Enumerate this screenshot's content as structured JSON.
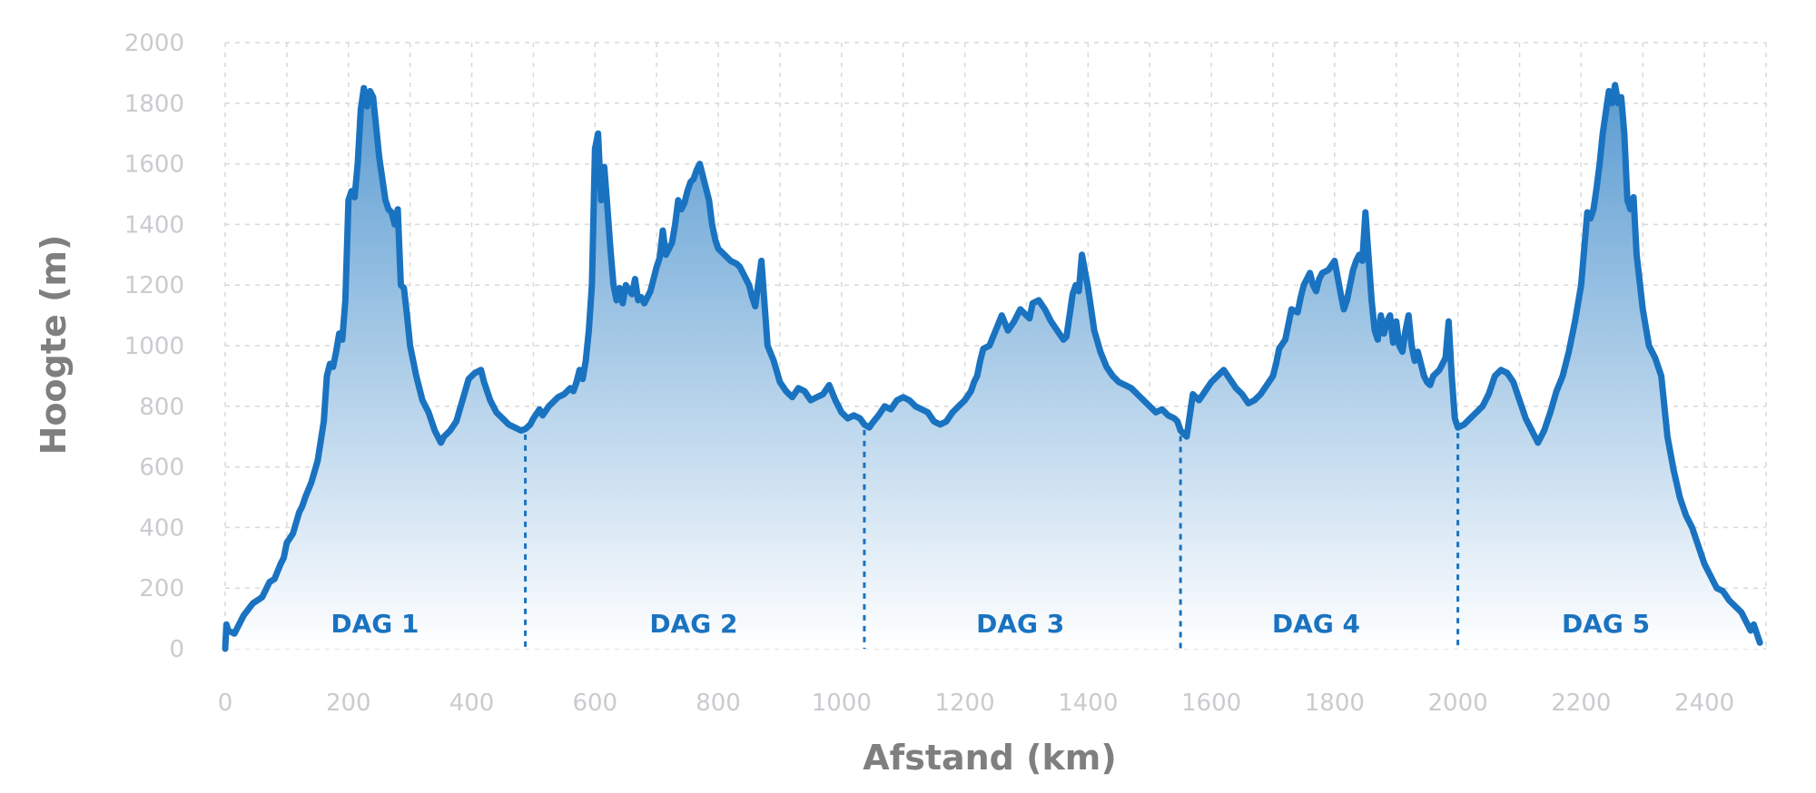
{
  "chart_data": {
    "type": "area",
    "title": "",
    "xlabel": "Afstand (km)",
    "ylabel": "Hoogte (m)",
    "xlim": [
      0,
      2500
    ],
    "ylim": [
      0,
      2000
    ],
    "x_ticks": [
      0,
      200,
      400,
      600,
      800,
      1000,
      1200,
      1400,
      1600,
      1800,
      2000,
      2200,
      2400
    ],
    "y_ticks": [
      0,
      200,
      400,
      600,
      800,
      1000,
      1200,
      1400,
      1600,
      1800,
      2000
    ],
    "grid": true,
    "line_color": "#1a73c0",
    "fill_top_color": "#5a9bd1",
    "fill_bottom_color": "#ffffff",
    "day_dividers": [
      487,
      1037,
      1550,
      2000
    ],
    "days": [
      {
        "label": "DAG 1",
        "x": 243
      },
      {
        "label": "DAG 2",
        "x": 760
      },
      {
        "label": "DAG 3",
        "x": 1290
      },
      {
        "label": "DAG 4",
        "x": 1770
      },
      {
        "label": "DAG 5",
        "x": 2240
      }
    ],
    "series": [
      {
        "x": [
          0,
          2,
          5,
          15,
          30,
          45,
          60,
          72,
          80,
          90,
          95,
          100,
          110,
          120,
          125,
          130,
          140,
          150,
          160,
          165,
          170,
          175,
          180,
          185,
          190,
          195,
          200,
          205,
          210,
          215,
          220,
          225,
          230,
          235,
          240,
          245,
          250,
          255,
          260,
          265,
          270,
          275,
          280,
          285,
          290,
          295,
          300,
          310,
          320,
          330,
          340,
          350,
          355,
          365,
          375,
          385,
          395,
          405,
          415,
          420,
          430,
          440,
          450,
          460,
          470,
          480,
          487,
          495,
          500,
          510,
          515,
          525,
          530,
          540,
          550,
          560,
          565,
          570,
          575,
          580,
          585,
          590,
          595,
          600,
          605,
          610,
          615,
          620,
          625,
          630,
          635,
          640,
          645,
          650,
          660,
          665,
          670,
          675,
          680,
          690,
          700,
          705,
          710,
          715,
          720,
          725,
          730,
          735,
          740,
          745,
          750,
          755,
          760,
          765,
          770,
          775,
          780,
          785,
          790,
          795,
          800,
          810,
          820,
          830,
          835,
          840,
          845,
          850,
          855,
          860,
          870,
          880,
          890,
          900,
          910,
          920,
          930,
          940,
          950,
          960,
          970,
          980,
          990,
          1000,
          1010,
          1020,
          1030,
          1037,
          1045,
          1050,
          1060,
          1070,
          1080,
          1090,
          1100,
          1110,
          1120,
          1130,
          1140,
          1150,
          1160,
          1170,
          1180,
          1190,
          1200,
          1210,
          1215,
          1220,
          1225,
          1230,
          1240,
          1250,
          1260,
          1270,
          1280,
          1290,
          1300,
          1305,
          1310,
          1320,
          1330,
          1340,
          1350,
          1360,
          1365,
          1370,
          1375,
          1380,
          1385,
          1390,
          1400,
          1410,
          1420,
          1430,
          1440,
          1450,
          1460,
          1470,
          1480,
          1490,
          1500,
          1510,
          1520,
          1530,
          1540,
          1545,
          1550,
          1560,
          1570,
          1580,
          1590,
          1600,
          1610,
          1620,
          1630,
          1640,
          1650,
          1660,
          1670,
          1680,
          1690,
          1700,
          1705,
          1710,
          1720,
          1730,
          1740,
          1745,
          1750,
          1760,
          1765,
          1770,
          1775,
          1780,
          1790,
          1800,
          1810,
          1815,
          1820,
          1825,
          1830,
          1835,
          1840,
          1845,
          1850,
          1860,
          1865,
          1870,
          1875,
          1880,
          1885,
          1890,
          1895,
          1900,
          1905,
          1910,
          1915,
          1920,
          1925,
          1930,
          1935,
          1940,
          1945,
          1950,
          1955,
          1960,
          1970,
          1980,
          1985,
          1990,
          1995,
          2000,
          2010,
          2020,
          2030,
          2040,
          2050,
          2060,
          2070,
          2080,
          2090,
          2100,
          2110,
          2120,
          2125,
          2130,
          2140,
          2150,
          2160,
          2170,
          2180,
          2190,
          2200,
          2205,
          2210,
          2215,
          2220,
          2225,
          2230,
          2235,
          2240,
          2245,
          2250,
          2255,
          2260,
          2265,
          2270,
          2275,
          2280,
          2285,
          2290,
          2300,
          2310,
          2320,
          2330,
          2340,
          2350,
          2360,
          2370,
          2380,
          2390,
          2400,
          2410,
          2420,
          2430,
          2440,
          2450,
          2460,
          2470,
          2475,
          2480,
          2490
        ],
        "values": [
          0,
          80,
          60,
          50,
          110,
          150,
          170,
          220,
          230,
          280,
          300,
          350,
          380,
          450,
          470,
          500,
          550,
          620,
          750,
          900,
          940,
          930,
          980,
          1040,
          1020,
          1150,
          1480,
          1510,
          1490,
          1600,
          1780,
          1850,
          1790,
          1840,
          1820,
          1720,
          1620,
          1550,
          1480,
          1450,
          1440,
          1400,
          1450,
          1200,
          1190,
          1100,
          1000,
          900,
          820,
          780,
          720,
          680,
          700,
          720,
          750,
          820,
          890,
          910,
          920,
          880,
          820,
          780,
          760,
          740,
          730,
          720,
          725,
          740,
          760,
          790,
          770,
          800,
          810,
          830,
          840,
          860,
          850,
          880,
          920,
          890,
          950,
          1050,
          1200,
          1650,
          1700,
          1480,
          1590,
          1460,
          1320,
          1200,
          1150,
          1190,
          1140,
          1200,
          1170,
          1220,
          1150,
          1160,
          1140,
          1180,
          1260,
          1290,
          1380,
          1300,
          1320,
          1340,
          1400,
          1480,
          1450,
          1470,
          1510,
          1540,
          1550,
          1580,
          1600,
          1560,
          1520,
          1480,
          1400,
          1350,
          1320,
          1300,
          1280,
          1270,
          1260,
          1240,
          1220,
          1200,
          1160,
          1130,
          1280,
          1000,
          950,
          880,
          850,
          830,
          860,
          850,
          820,
          830,
          840,
          870,
          820,
          780,
          760,
          770,
          760,
          740,
          730,
          745,
          770,
          800,
          790,
          820,
          830,
          820,
          800,
          790,
          780,
          750,
          740,
          750,
          780,
          800,
          820,
          850,
          880,
          900,
          950,
          990,
          1000,
          1050,
          1100,
          1050,
          1080,
          1120,
          1100,
          1090,
          1140,
          1150,
          1120,
          1080,
          1050,
          1020,
          1030,
          1100,
          1170,
          1200,
          1180,
          1300,
          1190,
          1050,
          980,
          930,
          900,
          880,
          870,
          860,
          840,
          820,
          800,
          780,
          790,
          770,
          760,
          750,
          720,
          700,
          840,
          820,
          850,
          880,
          900,
          920,
          890,
          860,
          840,
          810,
          820,
          840,
          870,
          900,
          940,
          990,
          1020,
          1120,
          1110,
          1160,
          1200,
          1240,
          1200,
          1180,
          1220,
          1240,
          1250,
          1280,
          1170,
          1120,
          1150,
          1200,
          1250,
          1280,
          1300,
          1280,
          1440,
          1150,
          1050,
          1020,
          1100,
          1040,
          1080,
          1100,
          1010,
          1080,
          1000,
          980,
          1050,
          1100,
          1000,
          950,
          980,
          940,
          900,
          880,
          870,
          900,
          920,
          960,
          1080,
          900,
          760,
          730,
          740,
          760,
          780,
          800,
          840,
          900,
          920,
          910,
          880,
          820,
          760,
          720,
          700,
          680,
          720,
          780,
          850,
          900,
          980,
          1080,
          1200,
          1320,
          1440,
          1420,
          1450,
          1520,
          1600,
          1700,
          1770,
          1840,
          1800,
          1860,
          1800,
          1820,
          1700,
          1480,
          1450,
          1490,
          1300,
          1120,
          1000,
          960,
          900,
          700,
          590,
          500,
          440,
          400,
          340,
          280,
          240,
          200,
          190,
          160,
          140,
          120,
          80,
          60,
          80,
          20
        ]
      }
    ]
  }
}
